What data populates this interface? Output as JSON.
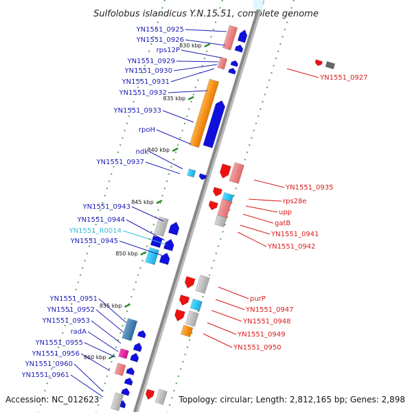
{
  "title": "Sulfolobus islandicus Y.N.15.51, complete genome",
  "accession": "Accession: NC_012623",
  "topology": "Topology: circular; Length: 2,812,165 bp; Genes: 2,898",
  "colors": {
    "backbone": "#888888",
    "left_label": "#1c1cb4",
    "right_label": "#d81818",
    "rna_label": "#33bbdd",
    "tick": "#2a8a2a"
  },
  "ticks": [
    {
      "label": "830 kbp"
    },
    {
      "label": "835 kbp"
    },
    {
      "label": "840 kbp"
    },
    {
      "label": "845 kbp"
    },
    {
      "label": "850 kbp"
    },
    {
      "label": "855 kbp"
    },
    {
      "label": "860 kbp"
    }
  ],
  "left_labels": [
    {
      "text": "YN1551_0925",
      "kind": "cds"
    },
    {
      "text": "YN1551_0926",
      "kind": "cds"
    },
    {
      "text": "rps12P",
      "kind": "cds"
    },
    {
      "text": "YN1551_0929",
      "kind": "cds"
    },
    {
      "text": "YN1551_0930",
      "kind": "cds"
    },
    {
      "text": "YN1551_0931",
      "kind": "cds"
    },
    {
      "text": "YN1551_0932",
      "kind": "cds"
    },
    {
      "text": "YN1551_0933",
      "kind": "cds"
    },
    {
      "text": "rpoH",
      "kind": "cds"
    },
    {
      "text": "ndk",
      "kind": "cds"
    },
    {
      "text": "YN1551_0937",
      "kind": "cds"
    },
    {
      "text": "YN1551_0943",
      "kind": "cds"
    },
    {
      "text": "YN1551_0944",
      "kind": "cds"
    },
    {
      "text": "YN1551_R0014",
      "kind": "rna"
    },
    {
      "text": "YN1551_0945",
      "kind": "cds"
    },
    {
      "text": "YN1551_0951",
      "kind": "cds"
    },
    {
      "text": "YN1551_0952",
      "kind": "cds"
    },
    {
      "text": "YN1551_0953",
      "kind": "cds"
    },
    {
      "text": "radA",
      "kind": "cds"
    },
    {
      "text": "YN1551_0955",
      "kind": "cds"
    },
    {
      "text": "YN1551_0956",
      "kind": "cds"
    },
    {
      "text": "YN1551_0960",
      "kind": "cds"
    },
    {
      "text": "YN1551_0961",
      "kind": "cds"
    }
  ],
  "right_labels": [
    {
      "text": "YN1551_0927"
    },
    {
      "text": "YN1551_0935"
    },
    {
      "text": "rps28e"
    },
    {
      "text": "upp"
    },
    {
      "text": "gatB"
    },
    {
      "text": "YN1551_0941"
    },
    {
      "text": "YN1551_0942"
    },
    {
      "text": "purP"
    },
    {
      "text": "YN1551_0947"
    },
    {
      "text": "YN1551_0948"
    },
    {
      "text": "YN1551_0949"
    },
    {
      "text": "YN1551_0950"
    }
  ]
}
